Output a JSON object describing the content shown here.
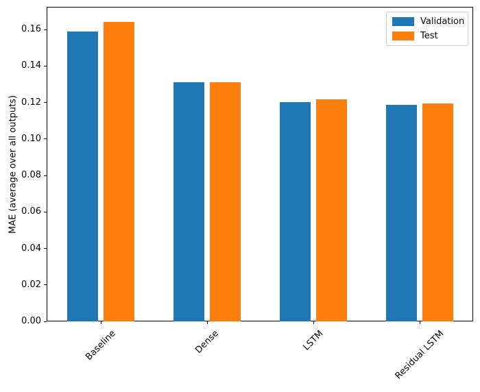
{
  "chart_data": {
    "type": "bar",
    "title": "",
    "xlabel": "",
    "ylabel": "MAE (average over all outputs)",
    "categories": [
      "Baseline",
      "Dense",
      "LSTM",
      "Residual LSTM"
    ],
    "series": [
      {
        "name": "Validation",
        "color": "#1f77b4",
        "values": [
          0.159,
          0.131,
          0.1202,
          0.1186
        ]
      },
      {
        "name": "Test",
        "color": "#ff7f0e",
        "values": [
          0.1641,
          0.1309,
          0.1216,
          0.1196
        ]
      }
    ],
    "yticks": [
      0.0,
      0.02,
      0.04,
      0.06,
      0.08,
      0.1,
      0.12,
      0.14,
      0.16
    ],
    "ytick_format_decimals": 2,
    "ylim": [
      0,
      0.1724
    ],
    "xtick_rotation_deg": 45,
    "grid": false,
    "legend_position": "upper right",
    "background_color": "#ffffff",
    "spine_color": "#000000"
  }
}
